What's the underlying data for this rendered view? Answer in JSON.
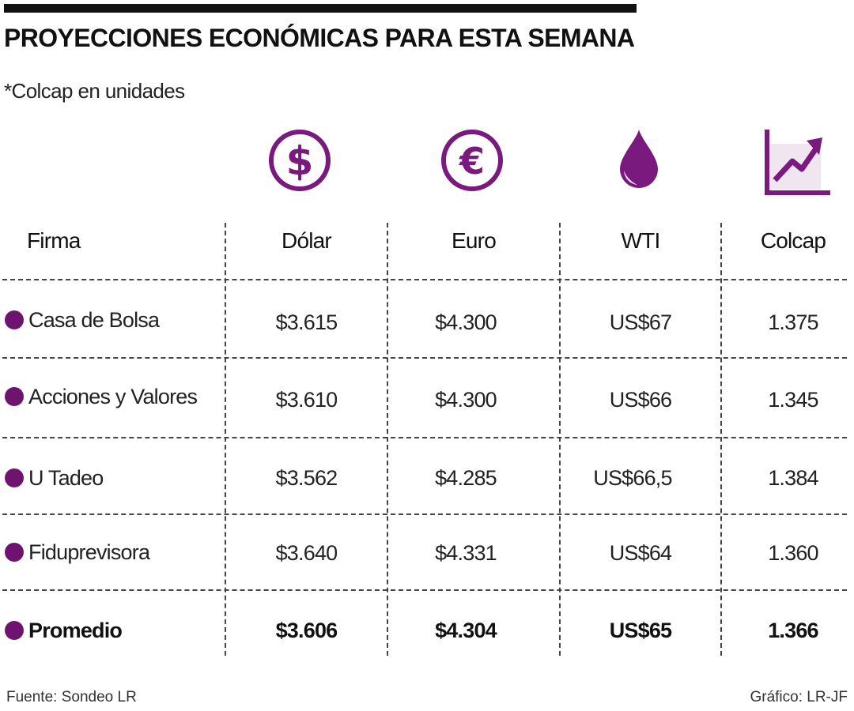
{
  "header": {
    "title": "PROYECCIONES ECONÓMICAS PARA ESTA SEMANA",
    "subtitle": "*Colcap en unidades"
  },
  "colors": {
    "accent": "#7a1a7e",
    "accent_light": "#efe6f0",
    "rule": "#111111"
  },
  "icons": [
    "dollar-coin-icon",
    "euro-coin-icon",
    "oil-drop-icon",
    "growth-chart-icon"
  ],
  "table": {
    "columns": [
      "Firma",
      "Dólar",
      "Euro",
      "WTI",
      "Colcap"
    ],
    "rows": [
      {
        "firma": "Casa de Bolsa",
        "dolar": "$3.615",
        "euro": "$4.300",
        "wti": "US$67",
        "colcap": "1.375"
      },
      {
        "firma": "Acciones y Valores",
        "dolar": "$3.610",
        "euro": "$4.300",
        "wti": "US$66",
        "colcap": "1.345"
      },
      {
        "firma": "U Tadeo",
        "dolar": "$3.562",
        "euro": "$4.285",
        "wti": "US$66,5",
        "colcap": "1.384"
      },
      {
        "firma": "Fiduprevisora",
        "dolar": "$3.640",
        "euro": "$4.331",
        "wti": "US$64",
        "colcap": "1.360"
      }
    ],
    "average": {
      "firma": "Promedio",
      "dolar": "$3.606",
      "euro": "$4.304",
      "wti": "US$65",
      "colcap": "1.366"
    }
  },
  "footer": {
    "source": "Fuente: Sondeo LR",
    "credit": "Gráfico: LR-JF"
  }
}
